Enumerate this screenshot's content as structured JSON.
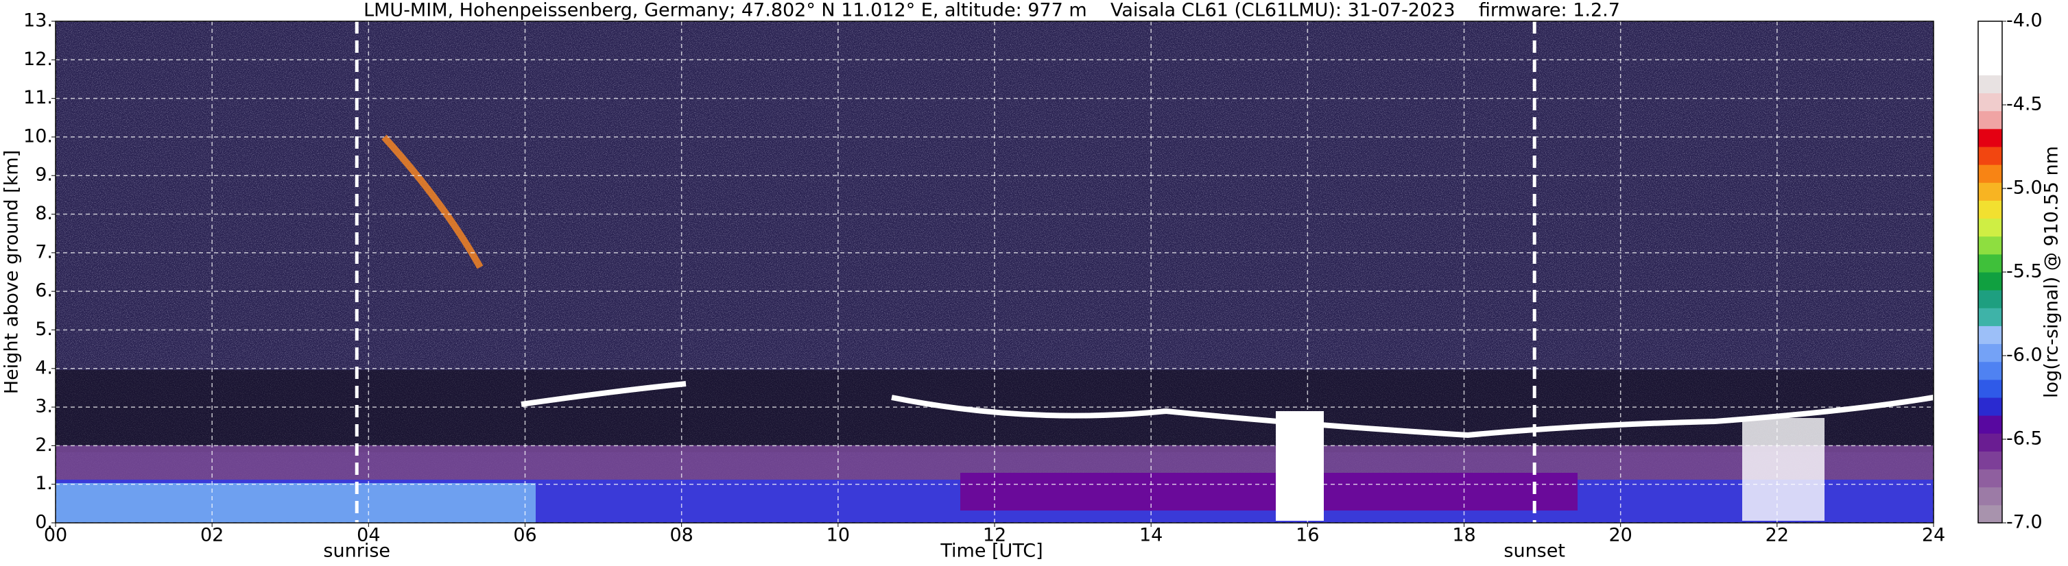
{
  "chart_data": {
    "type": "heatmap",
    "title": "LMU-MIM, Hohenpeissenberg, Germany; 47.802° N 11.012° E, altitude: 977 m    Vaisala CL61 (CL61LMU): 31-07-2023    firmware: 1.2.7",
    "x_label": "Time [UTC]",
    "y_label": "Height above ground [km]",
    "xlim": [
      0,
      24
    ],
    "xticks": [
      {
        "value": 0,
        "label": "00"
      },
      {
        "value": 2,
        "label": "02"
      },
      {
        "value": 4,
        "label": "04"
      },
      {
        "value": 6,
        "label": "06"
      },
      {
        "value": 8,
        "label": "08"
      },
      10,
      12,
      14,
      16,
      18,
      20,
      22,
      24
    ],
    "ylim": [
      0,
      13
    ],
    "yticks": [
      {
        "value": 0,
        "label": "0."
      },
      {
        "value": 1,
        "label": "1."
      },
      {
        "value": 2,
        "label": "2."
      },
      {
        "value": 3,
        "label": "3."
      },
      {
        "value": 4,
        "label": "4."
      },
      {
        "value": 5,
        "label": "5."
      },
      {
        "value": 6,
        "label": "6."
      },
      {
        "value": 7,
        "label": "7."
      },
      {
        "value": 8,
        "label": "8."
      },
      {
        "value": 9,
        "label": "9."
      },
      {
        "value": 10,
        "label": "10."
      },
      {
        "value": 11,
        "label": "11."
      },
      {
        "value": 12,
        "label": "12."
      },
      {
        "value": 13,
        "label": "13."
      }
    ],
    "grid": true,
    "annotations": [
      {
        "x": 3.85,
        "label": "sunrise"
      },
      {
        "x": 18.9,
        "label": "sunset"
      }
    ],
    "colorbar": {
      "label": "log(rc-signal) @ 910.55 nm",
      "lim": [
        -7,
        -4
      ],
      "ticks": [
        {
          "value": -7,
          "label": "-7.0"
        },
        {
          "value": -6.5,
          "label": "-6.5"
        },
        {
          "value": -6,
          "label": "-6.0"
        },
        {
          "value": -5.5,
          "label": "-5.5"
        },
        {
          "value": -5,
          "label": "-5.0"
        },
        {
          "value": -4.5,
          "label": "-4.5"
        },
        {
          "value": -4,
          "label": "-4.0"
        }
      ],
      "colors": [
        "#a893ad",
        "#9c7ba6",
        "#8f5f9f",
        "#7d3f98",
        "#6a1d92",
        "#5808a0",
        "#2a2ad0",
        "#2f5ae8",
        "#4f82f2",
        "#74a2f6",
        "#9cbff8",
        "#3eb3a8",
        "#1e9f80",
        "#10a040",
        "#3fc03a",
        "#8ede40",
        "#cfee44",
        "#f2e030",
        "#f8b422",
        "#f88414",
        "#f24610",
        "#e40012",
        "#f0a4a4",
        "#f0cccc",
        "#e8e2e2",
        "#ffffff",
        "#ffffff",
        "#ffffff"
      ]
    }
  }
}
